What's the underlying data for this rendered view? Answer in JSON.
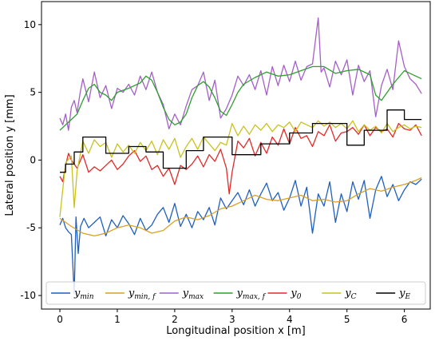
{
  "chart_data": {
    "type": "line",
    "title": "",
    "xlabel": "Longitudinal position x [m]",
    "ylabel": "Lateral position y [mm]",
    "xlim": [
      -0.32,
      6.45
    ],
    "ylim": [
      -11.0,
      11.7
    ],
    "xticks": [
      0,
      1,
      2,
      3,
      4,
      5,
      6
    ],
    "yticks": [
      -10,
      -5,
      0,
      5,
      10
    ],
    "grid": false,
    "legend_position": "bottom, single row inside plot",
    "series": [
      {
        "name": "y_min",
        "legend_base": "y",
        "legend_sub": "min",
        "color": "#1f5fbf",
        "x": [
          0.0,
          0.05,
          0.1,
          0.15,
          0.2,
          0.25,
          0.28,
          0.32,
          0.36,
          0.42,
          0.5,
          0.6,
          0.7,
          0.8,
          0.9,
          1.0,
          1.1,
          1.2,
          1.3,
          1.4,
          1.5,
          1.6,
          1.7,
          1.8,
          1.9,
          2.0,
          2.1,
          2.2,
          2.3,
          2.4,
          2.5,
          2.6,
          2.7,
          2.8,
          2.9,
          3.0,
          3.1,
          3.2,
          3.3,
          3.4,
          3.5,
          3.6,
          3.7,
          3.8,
          3.9,
          4.0,
          4.1,
          4.2,
          4.3,
          4.4,
          4.5,
          4.6,
          4.7,
          4.8,
          4.9,
          5.0,
          5.1,
          5.2,
          5.3,
          5.4,
          5.5,
          5.6,
          5.7,
          5.8,
          5.9,
          6.0,
          6.1,
          6.2,
          6.3
        ],
        "y": [
          -4.8,
          -4.3,
          -5.0,
          -5.3,
          -5.5,
          -9.9,
          -4.2,
          -6.9,
          -4.9,
          -4.3,
          -5.0,
          -4.6,
          -4.2,
          -5.6,
          -4.4,
          -5.0,
          -4.1,
          -4.7,
          -5.5,
          -4.3,
          -5.2,
          -4.8,
          -4.0,
          -3.5,
          -4.6,
          -3.2,
          -4.9,
          -4.0,
          -5.0,
          -3.8,
          -4.4,
          -3.5,
          -4.8,
          -2.8,
          -3.6,
          -3.0,
          -2.4,
          -3.3,
          -2.2,
          -3.4,
          -2.5,
          -1.7,
          -3.0,
          -2.4,
          -3.7,
          -2.8,
          -1.5,
          -3.4,
          -2.0,
          -5.4,
          -2.5,
          -3.4,
          -1.6,
          -4.6,
          -2.5,
          -3.8,
          -1.6,
          -2.9,
          -1.5,
          -4.3,
          -2.2,
          -1.2,
          -2.7,
          -1.8,
          -3.0,
          -2.2,
          -1.6,
          -1.8,
          -1.4
        ]
      },
      {
        "name": "y_min,f",
        "legend_base": "y",
        "legend_sub": "min, f",
        "color": "#d9a026",
        "x": [
          0.0,
          0.2,
          0.4,
          0.6,
          0.8,
          1.0,
          1.2,
          1.4,
          1.6,
          1.8,
          2.0,
          2.2,
          2.4,
          2.6,
          2.8,
          3.0,
          3.2,
          3.4,
          3.6,
          3.8,
          4.0,
          4.2,
          4.4,
          4.6,
          4.8,
          5.0,
          5.2,
          5.4,
          5.6,
          5.8,
          6.0,
          6.2,
          6.3
        ],
        "y": [
          -4.3,
          -4.9,
          -5.4,
          -5.6,
          -5.4,
          -5.0,
          -4.8,
          -5.0,
          -5.4,
          -5.2,
          -4.5,
          -4.2,
          -4.4,
          -4.1,
          -3.6,
          -3.4,
          -3.0,
          -2.6,
          -2.9,
          -3.0,
          -2.8,
          -2.6,
          -3.0,
          -2.9,
          -3.1,
          -3.0,
          -2.5,
          -2.1,
          -2.3,
          -2.0,
          -1.8,
          -1.5,
          -1.3
        ]
      },
      {
        "name": "y_max",
        "legend_base": "y",
        "legend_sub": "max",
        "color": "#a45fc9",
        "x": [
          0.0,
          0.05,
          0.1,
          0.15,
          0.2,
          0.25,
          0.3,
          0.35,
          0.4,
          0.5,
          0.6,
          0.7,
          0.8,
          0.9,
          1.0,
          1.1,
          1.2,
          1.3,
          1.4,
          1.5,
          1.6,
          1.7,
          1.8,
          1.9,
          2.0,
          2.1,
          2.2,
          2.3,
          2.4,
          2.5,
          2.6,
          2.7,
          2.8,
          2.9,
          3.0,
          3.1,
          3.2,
          3.3,
          3.4,
          3.5,
          3.6,
          3.7,
          3.8,
          3.9,
          4.0,
          4.1,
          4.2,
          4.3,
          4.4,
          4.5,
          4.55,
          4.6,
          4.7,
          4.8,
          4.9,
          5.0,
          5.1,
          5.2,
          5.3,
          5.4,
          5.5,
          5.6,
          5.7,
          5.8,
          5.9,
          6.0,
          6.1,
          6.2,
          6.3
        ],
        "y": [
          3.1,
          2.6,
          3.4,
          2.2,
          3.9,
          4.4,
          3.5,
          4.9,
          6.0,
          4.3,
          6.5,
          4.6,
          5.5,
          3.8,
          5.3,
          5.0,
          5.6,
          4.8,
          6.2,
          5.2,
          6.5,
          5.0,
          4.1,
          2.3,
          3.4,
          2.6,
          4.0,
          5.2,
          5.5,
          6.5,
          4.4,
          5.9,
          3.1,
          3.8,
          4.8,
          6.2,
          5.5,
          6.3,
          5.2,
          6.6,
          4.8,
          6.9,
          5.5,
          7.0,
          5.8,
          7.3,
          5.9,
          6.9,
          7.1,
          10.5,
          6.5,
          6.8,
          5.4,
          7.3,
          6.3,
          7.4,
          4.8,
          7.0,
          5.8,
          6.6,
          3.2,
          5.5,
          6.7,
          5.2,
          8.8,
          6.9,
          6.0,
          5.6,
          4.9
        ]
      },
      {
        "name": "y_max,f",
        "legend_base": "y",
        "legend_sub": "max, f",
        "color": "#2ca02c",
        "x": [
          0.0,
          0.1,
          0.2,
          0.3,
          0.4,
          0.5,
          0.6,
          0.7,
          0.8,
          0.9,
          1.0,
          1.2,
          1.4,
          1.5,
          1.6,
          1.7,
          1.8,
          1.9,
          2.0,
          2.1,
          2.2,
          2.3,
          2.4,
          2.5,
          2.6,
          2.7,
          2.8,
          2.9,
          3.0,
          3.1,
          3.2,
          3.4,
          3.6,
          3.8,
          4.0,
          4.2,
          4.4,
          4.6,
          4.8,
          5.0,
          5.2,
          5.4,
          5.5,
          5.6,
          5.8,
          6.0,
          6.2,
          6.3
        ],
        "y": [
          2.2,
          2.6,
          3.0,
          3.4,
          4.4,
          5.3,
          5.6,
          5.0,
          4.8,
          4.4,
          5.0,
          5.3,
          5.7,
          6.2,
          5.9,
          5.0,
          3.9,
          3.0,
          2.6,
          2.8,
          3.4,
          4.6,
          5.5,
          5.8,
          5.4,
          4.6,
          3.6,
          3.3,
          4.1,
          5.0,
          5.6,
          6.1,
          6.5,
          6.2,
          6.3,
          6.6,
          6.9,
          6.9,
          6.4,
          6.6,
          6.7,
          6.3,
          4.8,
          4.4,
          5.6,
          6.6,
          6.2,
          6.0
        ]
      },
      {
        "name": "y_0",
        "legend_base": "y",
        "legend_sub": "0",
        "color": "#e02a2a",
        "x": [
          0.0,
          0.05,
          0.1,
          0.15,
          0.2,
          0.3,
          0.4,
          0.5,
          0.6,
          0.7,
          0.8,
          0.9,
          1.0,
          1.1,
          1.2,
          1.3,
          1.4,
          1.5,
          1.6,
          1.7,
          1.8,
          1.9,
          2.0,
          2.1,
          2.2,
          2.3,
          2.4,
          2.5,
          2.6,
          2.7,
          2.8,
          2.9,
          2.95,
          3.0,
          3.1,
          3.2,
          3.3,
          3.4,
          3.5,
          3.6,
          3.7,
          3.8,
          3.9,
          4.0,
          4.1,
          4.2,
          4.3,
          4.4,
          4.5,
          4.6,
          4.7,
          4.8,
          4.9,
          5.0,
          5.1,
          5.2,
          5.3,
          5.4,
          5.5,
          5.6,
          5.7,
          5.8,
          5.9,
          6.0,
          6.1,
          6.2,
          6.3
        ],
        "y": [
          -1.2,
          -1.6,
          -0.4,
          0.5,
          0.0,
          -0.6,
          0.4,
          -0.9,
          -0.5,
          -0.8,
          -0.4,
          0.0,
          -0.7,
          -0.3,
          0.3,
          0.7,
          -0.1,
          0.3,
          -0.7,
          -0.4,
          -1.2,
          -0.6,
          -1.8,
          -0.4,
          -0.7,
          -0.3,
          0.3,
          -0.5,
          0.4,
          -0.1,
          0.8,
          -0.6,
          -2.5,
          -0.9,
          1.4,
          0.9,
          1.6,
          0.3,
          1.3,
          0.5,
          1.7,
          1.1,
          2.3,
          1.2,
          2.4,
          1.6,
          1.8,
          1.0,
          2.1,
          1.8,
          2.6,
          1.4,
          2.0,
          2.1,
          2.4,
          1.9,
          2.6,
          1.8,
          2.4,
          2.1,
          2.3,
          1.7,
          2.7,
          2.3,
          2.2,
          2.6,
          1.8
        ]
      },
      {
        "name": "y_C",
        "legend_base": "y",
        "legend_sub": "C",
        "color": "#c8c21e",
        "x": [
          0.0,
          0.1,
          0.2,
          0.25,
          0.3,
          0.4,
          0.5,
          0.6,
          0.7,
          0.8,
          0.9,
          1.0,
          1.1,
          1.2,
          1.3,
          1.4,
          1.5,
          1.6,
          1.7,
          1.8,
          1.9,
          2.0,
          2.1,
          2.2,
          2.3,
          2.4,
          2.5,
          2.6,
          2.7,
          2.8,
          2.9,
          3.0,
          3.1,
          3.2,
          3.3,
          3.4,
          3.5,
          3.6,
          3.7,
          3.8,
          3.9,
          4.0,
          4.1,
          4.2,
          4.3,
          4.4,
          4.5,
          4.6,
          4.7,
          4.8,
          4.9,
          5.0,
          5.1,
          5.2,
          5.3,
          5.4,
          5.5,
          5.6,
          5.7,
          5.8,
          5.9,
          6.0,
          6.1,
          6.2,
          6.3
        ],
        "y": [
          -4.2,
          -0.2,
          0.3,
          -3.5,
          -0.8,
          1.4,
          0.5,
          1.5,
          1.0,
          1.3,
          0.2,
          1.2,
          0.6,
          1.1,
          0.5,
          1.3,
          0.7,
          1.4,
          0.4,
          1.5,
          0.8,
          1.6,
          0.2,
          1.0,
          1.6,
          0.8,
          1.7,
          1.2,
          0.7,
          1.3,
          1.1,
          2.7,
          1.8,
          2.5,
          1.9,
          2.6,
          2.2,
          2.7,
          2.1,
          2.6,
          2.4,
          2.8,
          2.1,
          2.8,
          2.6,
          2.4,
          2.9,
          2.5,
          2.8,
          2.4,
          2.7,
          2.3,
          2.9,
          2.1,
          2.6,
          2.2,
          2.5,
          2.0,
          2.7,
          2.1,
          2.4,
          2.6,
          2.3,
          2.5,
          2.4
        ]
      },
      {
        "name": "y_E",
        "legend_base": "y",
        "legend_sub": "E",
        "color": "#000000",
        "x": [
          0.0,
          0.1,
          0.1,
          0.25,
          0.25,
          0.4,
          0.4,
          0.8,
          0.8,
          1.2,
          1.2,
          1.5,
          1.5,
          1.8,
          1.8,
          2.2,
          2.2,
          2.5,
          2.5,
          3.0,
          3.0,
          3.5,
          3.5,
          4.0,
          4.0,
          4.4,
          4.4,
          5.0,
          5.0,
          5.3,
          5.3,
          5.7,
          5.7,
          6.0,
          6.0,
          6.3
        ],
        "y": [
          -0.9,
          -0.9,
          -0.3,
          -0.3,
          0.6,
          0.6,
          1.7,
          1.7,
          0.5,
          0.5,
          1.0,
          1.0,
          0.6,
          0.6,
          -0.6,
          -0.6,
          0.7,
          0.7,
          1.7,
          1.7,
          0.4,
          0.4,
          1.2,
          1.2,
          2.0,
          2.0,
          2.7,
          2.7,
          1.1,
          1.1,
          2.2,
          2.2,
          3.7,
          3.7,
          3.0,
          3.0
        ]
      }
    ]
  }
}
